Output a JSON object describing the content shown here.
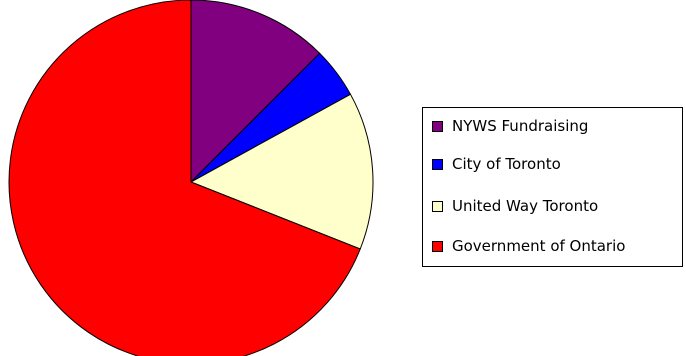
{
  "chart_data": {
    "type": "pie",
    "title": "",
    "categories": [
      "NYWS Fundraising",
      "City of Toronto",
      "United Way Toronto",
      "Government of Ontario"
    ],
    "values": [
      12.5,
      4.5,
      14.0,
      69.0
    ],
    "unit": "percent",
    "colors": [
      "#800080",
      "#0000ff",
      "#ffffcc",
      "#ff0000"
    ],
    "start_angle_deg": 0,
    "direction": "clockwise",
    "legend": {
      "placement": "right",
      "entries": [
        "NYWS Fundraising",
        "City of Toronto",
        "United Way Toronto",
        "Government of Ontario"
      ]
    }
  }
}
